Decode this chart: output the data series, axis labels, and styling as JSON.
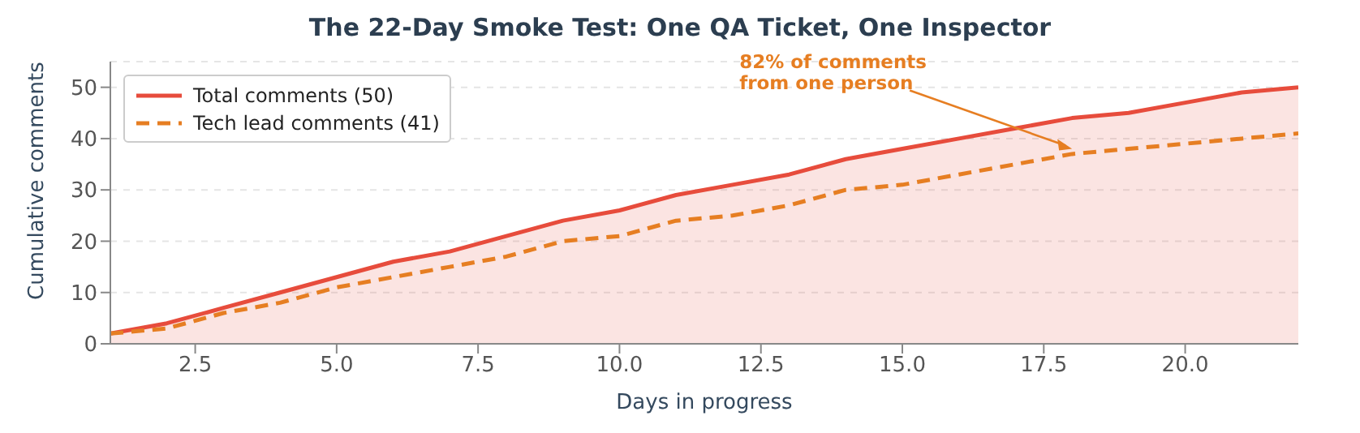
{
  "chart_data": {
    "type": "line",
    "title": "The 22-Day Smoke Test: One QA Ticket, One Inspector",
    "xlabel": "Days in progress",
    "ylabel": "Cumulative comments",
    "x": [
      1,
      2,
      3,
      4,
      5,
      6,
      7,
      8,
      9,
      10,
      11,
      12,
      13,
      14,
      15,
      16,
      17,
      18,
      19,
      20,
      21,
      22
    ],
    "series": [
      {
        "name": "Total comments (50)",
        "type": "area",
        "color": "#e74c3c",
        "line_style": "solid",
        "values": [
          2,
          4,
          7,
          10,
          13,
          16,
          18,
          21,
          24,
          26,
          29,
          31,
          33,
          36,
          38,
          40,
          42,
          44,
          45,
          47,
          49,
          50
        ]
      },
      {
        "name": "Tech lead comments (41)",
        "type": "line",
        "color": "#e67e22",
        "line_style": "dashed",
        "values": [
          2,
          3,
          6,
          8,
          11,
          13,
          15,
          17,
          20,
          21,
          24,
          25,
          27,
          30,
          31,
          33,
          35,
          37,
          38,
          39,
          40,
          41
        ]
      }
    ],
    "xlim": [
      1,
      22
    ],
    "xticks": [
      2.5,
      {
        "value": 5,
        "label": "5.0"
      },
      7.5,
      {
        "value": 10,
        "label": "10.0"
      },
      12.5,
      {
        "value": 15,
        "label": "15.0"
      },
      17.5,
      {
        "value": 20,
        "label": "20.0"
      }
    ],
    "ylim": [
      0,
      55
    ],
    "yticks": [
      0,
      10,
      20,
      30,
      40,
      50
    ],
    "grid": "y",
    "legend": "top left",
    "marker": "none",
    "annotations": [
      {
        "text": "82% of comments\nfrom one person",
        "x": 18,
        "y": 38
      }
    ]
  }
}
